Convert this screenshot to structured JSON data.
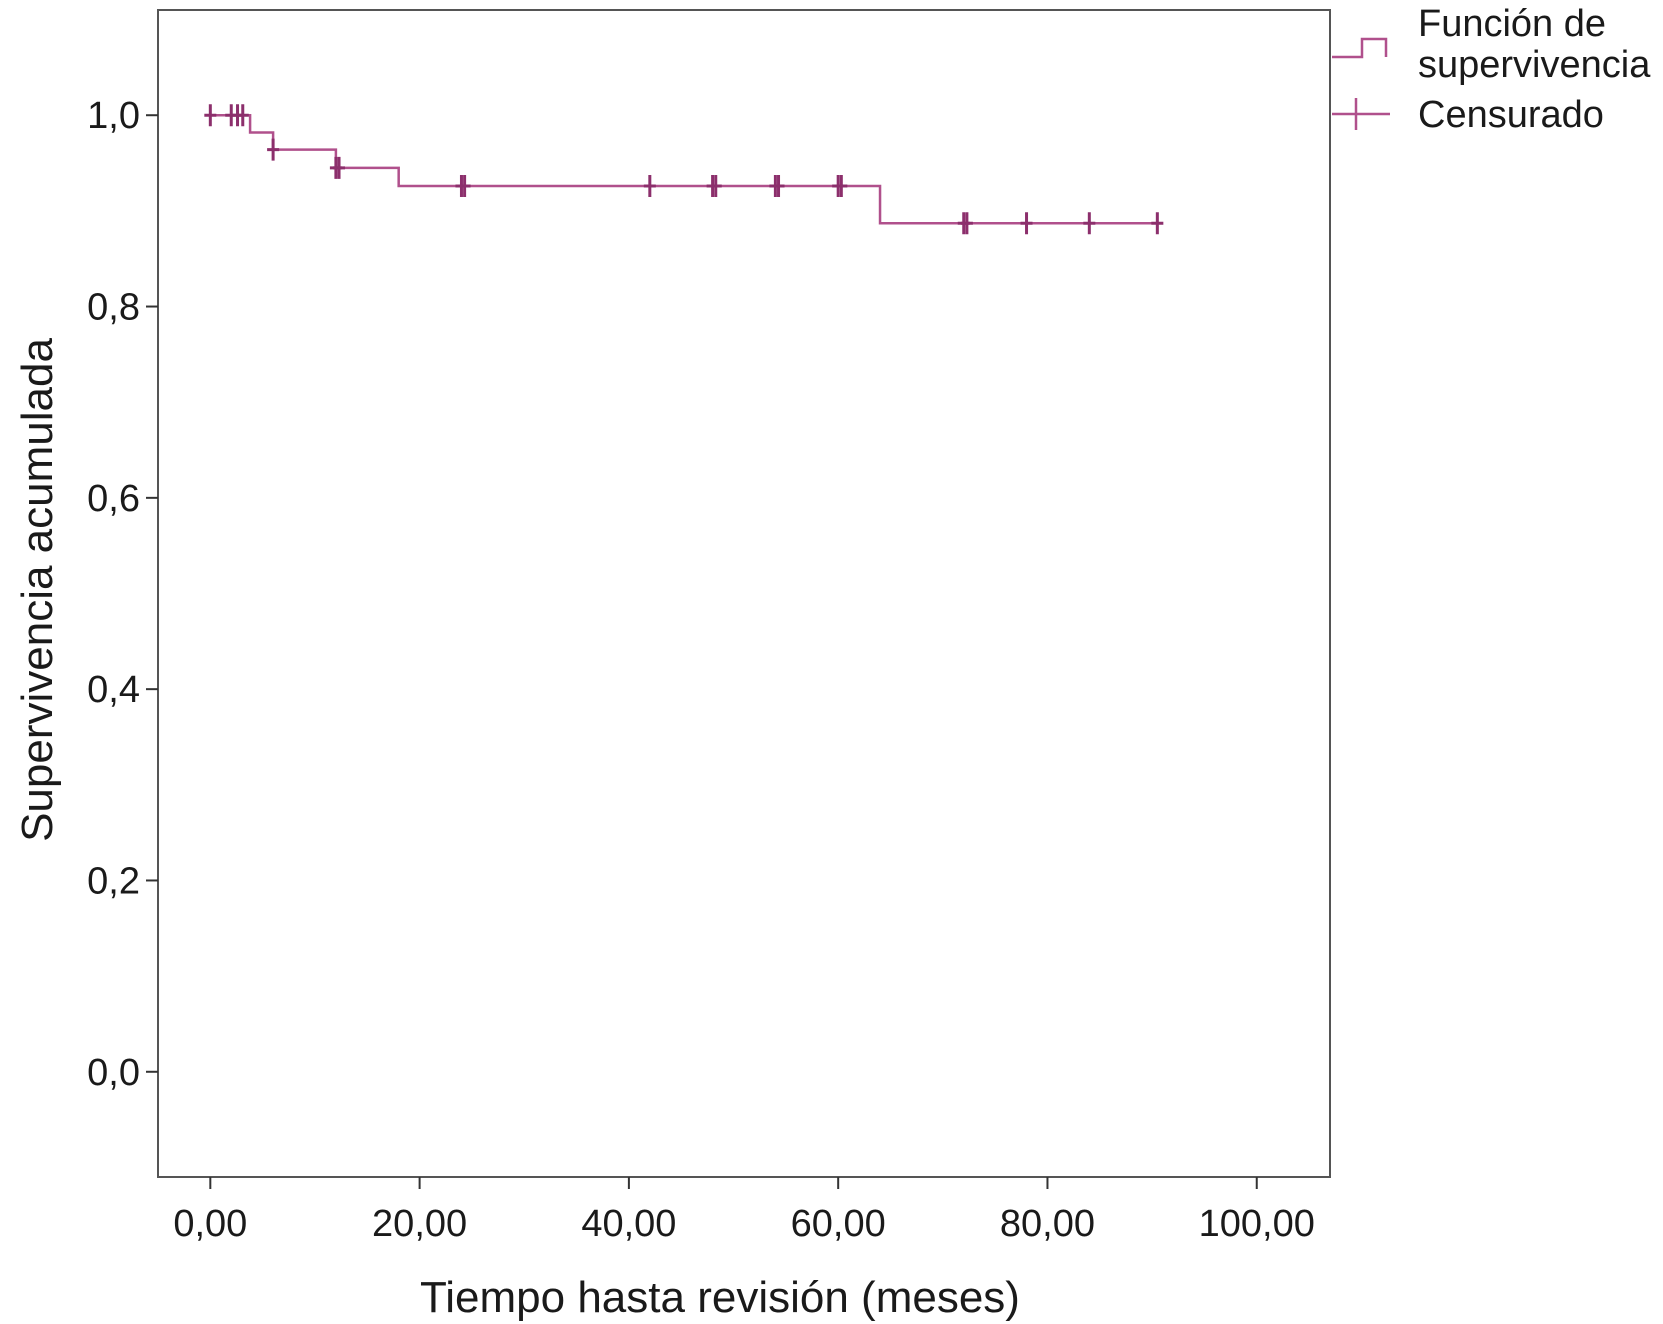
{
  "chart_data": {
    "type": "line",
    "xlabel": "Tiempo hasta revisión (meses)",
    "ylabel": "Supervivencia acumulada",
    "xlim": [
      -5,
      107
    ],
    "ylim": [
      -0.11,
      1.11
    ],
    "x_ticks": [
      0,
      20,
      40,
      60,
      80,
      100
    ],
    "x_tick_labels": [
      "0,00",
      "20,00",
      "40,00",
      "60,00",
      "80,00",
      "100,00"
    ],
    "y_ticks": [
      0,
      0.2,
      0.4,
      0.6,
      0.8,
      1.0
    ],
    "y_tick_labels": [
      "0,0",
      "0,2",
      "0,4",
      "0,6",
      "0,8",
      "1,0"
    ],
    "grid": false,
    "legend_position": "top-right outside",
    "legend": [
      {
        "name_lines": [
          "Función de",
          "supervivencia"
        ],
        "kind": "step"
      },
      {
        "name_lines": [
          "Censurado"
        ],
        "kind": "censor"
      }
    ],
    "series_color": "#b0508c",
    "censor_color": "#8c2f6c",
    "survival_steps": [
      {
        "x": 0,
        "y": 1.0
      },
      {
        "x": 3.8,
        "y": 0.982
      },
      {
        "x": 6.0,
        "y": 0.964
      },
      {
        "x": 12.0,
        "y": 0.945
      },
      {
        "x": 18.0,
        "y": 0.926
      },
      {
        "x": 64.0,
        "y": 0.887
      }
    ],
    "end_x": 90.5,
    "censored_points": [
      {
        "x": 0,
        "y": 1.0
      },
      {
        "x": 2.0,
        "y": 1.0
      },
      {
        "x": 2.6,
        "y": 1.0
      },
      {
        "x": 3.1,
        "y": 1.0
      },
      {
        "x": 6.0,
        "y": 0.964
      },
      {
        "x": 12.0,
        "y": 0.945
      },
      {
        "x": 12.3,
        "y": 0.945
      },
      {
        "x": 24.0,
        "y": 0.926
      },
      {
        "x": 24.3,
        "y": 0.926
      },
      {
        "x": 42.0,
        "y": 0.926
      },
      {
        "x": 48.0,
        "y": 0.926
      },
      {
        "x": 48.3,
        "y": 0.926
      },
      {
        "x": 54.0,
        "y": 0.926
      },
      {
        "x": 54.3,
        "y": 0.926
      },
      {
        "x": 60.0,
        "y": 0.926
      },
      {
        "x": 60.3,
        "y": 0.926
      },
      {
        "x": 72.0,
        "y": 0.887
      },
      {
        "x": 72.3,
        "y": 0.887
      },
      {
        "x": 78.0,
        "y": 0.887
      },
      {
        "x": 84.0,
        "y": 0.887
      },
      {
        "x": 90.5,
        "y": 0.887
      }
    ]
  }
}
